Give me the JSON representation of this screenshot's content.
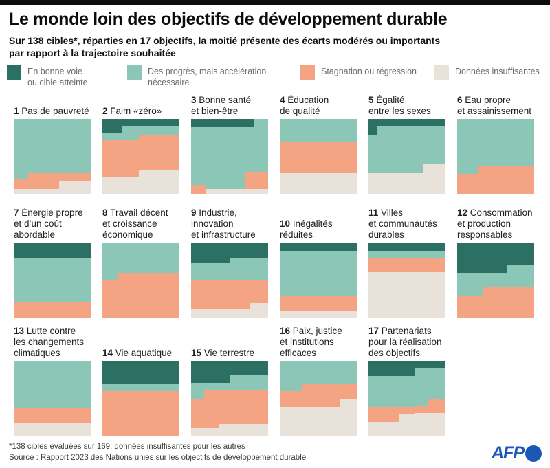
{
  "title": "Le monde loin des objectifs de développement durable",
  "subtitle": "Sur 138 cibles*, réparties en 17 objectifs, la moitié présente des écarts modérés ou importants\npar rapport à la trajectoire souhaitée",
  "colors": {
    "on": "#2c6f63",
    "prog": "#8cc6b7",
    "stag": "#f4a483",
    "ins": "#e8e2da",
    "topbar": "#0d0d0d",
    "afp_blue": "#1d57b5"
  },
  "legend": {
    "items": [
      {
        "key": "on",
        "color": "#2c6f63",
        "label": "En bonne voie\nou cible atteinte"
      },
      {
        "key": "prog",
        "color": "#8cc6b7",
        "label": "Des progrès, mais accélération\nnécessaire"
      },
      {
        "key": "stag",
        "color": "#f4a483",
        "label": "Stagnation ou régression"
      },
      {
        "key": "ins",
        "color": "#e8e2da",
        "label": "Données insuffisantes"
      }
    ]
  },
  "footnote": "*138 cibles évaluées sur 169, données insuffisantes pour les autres",
  "source": "Source : Rapport 2023 des Nations unies sur les objectifs de développement durable",
  "logo_text": "AFP",
  "chart_data": {
    "type": "area",
    "subtype": "small-multiples-stepped-stacked-shares",
    "title": "Le monde loin des objectifs de développement durable",
    "categories": [
      "En bonne voie ou cible atteinte",
      "Des progrès, mais accélération nécessaire",
      "Stagnation ou régression",
      "Données insuffisantes"
    ],
    "category_keys": [
      "on",
      "prog",
      "stag",
      "ins"
    ],
    "unit": "fraction of targets per goal (estimated from chart area)",
    "layout": {
      "rows": [
        6,
        6,
        5
      ],
      "legend_position": "top",
      "grid": "off"
    },
    "charts": [
      {
        "num": 1,
        "label_lines": [
          "Pas de pauvreté"
        ],
        "shares": {
          "on": 0,
          "prog": 0.73,
          "stag": 0.15,
          "ins": 0.12
        },
        "cols": [
          {
            "w": 0.19,
            "on": 0,
            "prog": 0.79,
            "stag": 0.135,
            "ins": 0.075
          },
          {
            "w": 0.4,
            "on": 0,
            "prog": 0.72,
            "stag": 0.205,
            "ins": 0.075
          },
          {
            "w": 0.41,
            "on": 0,
            "prog": 0.72,
            "stag": 0.1,
            "ins": 0.18
          }
        ]
      },
      {
        "num": 2,
        "label_lines": [
          "Faim «zéro»"
        ],
        "shares": {
          "on": 0.12,
          "prog": 0.13,
          "stag": 0.47,
          "ins": 0.28
        },
        "cols": [
          {
            "w": 0.25,
            "on": 0.195,
            "prog": 0.085,
            "stag": 0.48,
            "ins": 0.24
          },
          {
            "w": 0.22,
            "on": 0.1,
            "prog": 0.18,
            "stag": 0.48,
            "ins": 0.24
          },
          {
            "w": 0.53,
            "on": 0.1,
            "prog": 0.11,
            "stag": 0.46,
            "ins": 0.33
          }
        ]
      },
      {
        "num": 3,
        "label_lines": [
          "Bonne santé",
          "et bien-être"
        ],
        "shares": {
          "on": 0.09,
          "prog": 0.76,
          "stag": 0.09,
          "ins": 0.06
        },
        "cols": [
          {
            "w": 0.2,
            "on": 0.11,
            "prog": 0.76,
            "stag": 0.13,
            "ins": 0
          },
          {
            "w": 0.5,
            "on": 0.11,
            "prog": 0.82,
            "stag": 0,
            "ins": 0.07
          },
          {
            "w": 0.11,
            "on": 0.11,
            "prog": 0.6,
            "stag": 0.22,
            "ins": 0.07
          },
          {
            "w": 0.19,
            "on": 0,
            "prog": 0.71,
            "stag": 0.22,
            "ins": 0.07
          }
        ]
      },
      {
        "num": 4,
        "label_lines": [
          "Éducation",
          "de qualité"
        ],
        "shares": {
          "on": 0,
          "prog": 0.3,
          "stag": 0.42,
          "ins": 0.28
        },
        "cols": [
          {
            "w": 1,
            "on": 0,
            "prog": 0.3,
            "stag": 0.415,
            "ins": 0.285
          }
        ]
      },
      {
        "num": 5,
        "label_lines": [
          "Égalité",
          "entre les sexes"
        ],
        "shares": {
          "on": 0.1,
          "prog": 0.58,
          "stag": 0,
          "ins": 0.32
        },
        "cols": [
          {
            "w": 0.11,
            "on": 0.21,
            "prog": 0.51,
            "stag": 0,
            "ins": 0.28
          },
          {
            "w": 0.6,
            "on": 0.09,
            "prog": 0.63,
            "stag": 0,
            "ins": 0.28
          },
          {
            "w": 0.29,
            "on": 0.09,
            "prog": 0.51,
            "stag": 0,
            "ins": 0.4
          }
        ]
      },
      {
        "num": 6,
        "label_lines": [
          "Eau propre",
          "et assainissement"
        ],
        "shares": {
          "on": 0,
          "prog": 0.65,
          "stag": 0.35,
          "ins": 0
        },
        "cols": [
          {
            "w": 0.27,
            "on": 0,
            "prog": 0.73,
            "stag": 0.27,
            "ins": 0
          },
          {
            "w": 0.73,
            "on": 0,
            "prog": 0.62,
            "stag": 0.38,
            "ins": 0
          }
        ]
      },
      {
        "num": 7,
        "label_lines": [
          "Énergie propre",
          "et d’un coût",
          "abordable"
        ],
        "shares": {
          "on": 0.2,
          "prog": 0.58,
          "stag": 0.22,
          "ins": 0
        },
        "cols": [
          {
            "w": 1,
            "on": 0.2,
            "prog": 0.58,
            "stag": 0.22,
            "ins": 0
          }
        ]
      },
      {
        "num": 8,
        "label_lines": [
          "Travail décent",
          "et croissance",
          "économique"
        ],
        "shares": {
          "on": 0,
          "prog": 0.42,
          "stag": 0.58,
          "ins": 0
        },
        "cols": [
          {
            "w": 0.2,
            "on": 0,
            "prog": 0.49,
            "stag": 0.51,
            "ins": 0
          },
          {
            "w": 0.8,
            "on": 0,
            "prog": 0.4,
            "stag": 0.6,
            "ins": 0
          }
        ]
      },
      {
        "num": 9,
        "label_lines": [
          "Industrie,",
          "innovation",
          "et infrastructure"
        ],
        "shares": {
          "on": 0.24,
          "prog": 0.25,
          "stag": 0.37,
          "ins": 0.14
        },
        "cols": [
          {
            "w": 0.51,
            "on": 0.275,
            "prog": 0.215,
            "stag": 0.39,
            "ins": 0.12
          },
          {
            "w": 0.26,
            "on": 0.2,
            "prog": 0.29,
            "stag": 0.39,
            "ins": 0.12
          },
          {
            "w": 0.23,
            "on": 0.2,
            "prog": 0.29,
            "stag": 0.31,
            "ins": 0.2
          }
        ]
      },
      {
        "num": 10,
        "label_lines": [
          "Inégalités",
          "réduites"
        ],
        "shares": {
          "on": 0.1,
          "prog": 0.6,
          "stag": 0.21,
          "ins": 0.09
        },
        "cols": [
          {
            "w": 1,
            "on": 0.105,
            "prog": 0.6,
            "stag": 0.205,
            "ins": 0.09
          }
        ]
      },
      {
        "num": 11,
        "label_lines": [
          "Villes",
          "et communautés",
          "durables"
        ],
        "shares": {
          "on": 0.1,
          "prog": 0.1,
          "stag": 0.19,
          "ins": 0.61
        },
        "cols": [
          {
            "w": 1,
            "on": 0.105,
            "prog": 0.1,
            "stag": 0.19,
            "ins": 0.605
          }
        ]
      },
      {
        "num": 12,
        "label_lines": [
          "Consommation",
          "et production",
          "responsables"
        ],
        "shares": {
          "on": 0.37,
          "prog": 0.26,
          "stag": 0.37,
          "ins": 0
        },
        "cols": [
          {
            "w": 0.34,
            "on": 0.4,
            "prog": 0.3,
            "stag": 0.3,
            "ins": 0
          },
          {
            "w": 0.31,
            "on": 0.4,
            "prog": 0.19,
            "stag": 0.41,
            "ins": 0
          },
          {
            "w": 0.35,
            "on": 0.3,
            "prog": 0.29,
            "stag": 0.41,
            "ins": 0
          }
        ]
      },
      {
        "num": 13,
        "label_lines": [
          "Lutte contre",
          "les changements",
          "climatiques"
        ],
        "shares": {
          "on": 0,
          "prog": 0.62,
          "stag": 0.2,
          "ins": 0.18
        },
        "cols": [
          {
            "w": 1,
            "on": 0,
            "prog": 0.62,
            "stag": 0.2,
            "ins": 0.18
          }
        ]
      },
      {
        "num": 14,
        "label_lines": [
          "Vie aquatique"
        ],
        "shares": {
          "on": 0.31,
          "prog": 0.09,
          "stag": 0.6,
          "ins": 0
        },
        "cols": [
          {
            "w": 1,
            "on": 0.31,
            "prog": 0.09,
            "stag": 0.6,
            "ins": 0
          }
        ]
      },
      {
        "num": 15,
        "label_lines": [
          "Vie terrestre"
        ],
        "shares": {
          "on": 0.24,
          "prog": 0.15,
          "stag": 0.46,
          "ins": 0.15
        },
        "cols": [
          {
            "w": 0.17,
            "on": 0.3,
            "prog": 0.2,
            "stag": 0.39,
            "ins": 0.11
          },
          {
            "w": 0.19,
            "on": 0.3,
            "prog": 0.08,
            "stag": 0.51,
            "ins": 0.11
          },
          {
            "w": 0.15,
            "on": 0.3,
            "prog": 0.08,
            "stag": 0.46,
            "ins": 0.16
          },
          {
            "w": 0.49,
            "on": 0.18,
            "prog": 0.2,
            "stag": 0.46,
            "ins": 0.16
          }
        ]
      },
      {
        "num": 16,
        "label_lines": [
          "Paix, justice",
          "et institutions",
          "efficaces"
        ],
        "shares": {
          "on": 0,
          "prog": 0.34,
          "stag": 0.25,
          "ins": 0.41
        },
        "cols": [
          {
            "w": 0.29,
            "on": 0,
            "prog": 0.4,
            "stag": 0.21,
            "ins": 0.39
          },
          {
            "w": 0.5,
            "on": 0,
            "prog": 0.31,
            "stag": 0.3,
            "ins": 0.39
          },
          {
            "w": 0.21,
            "on": 0,
            "prog": 0.31,
            "stag": 0.19,
            "ins": 0.5
          }
        ]
      },
      {
        "num": 17,
        "label_lines": [
          "Partenariats",
          "pour la réalisation",
          "des objectifs"
        ],
        "shares": {
          "on": 0.16,
          "prog": 0.42,
          "stag": 0.16,
          "ins": 0.26
        },
        "cols": [
          {
            "w": 0.4,
            "on": 0.2,
            "prog": 0.41,
            "stag": 0.2,
            "ins": 0.19
          },
          {
            "w": 0.21,
            "on": 0.2,
            "prog": 0.41,
            "stag": 0.09,
            "ins": 0.3
          },
          {
            "w": 0.17,
            "on": 0.1,
            "prog": 0.5,
            "stag": 0.09,
            "ins": 0.31
          },
          {
            "w": 0.22,
            "on": 0.1,
            "prog": 0.4,
            "stag": 0.19,
            "ins": 0.31
          }
        ]
      }
    ]
  }
}
